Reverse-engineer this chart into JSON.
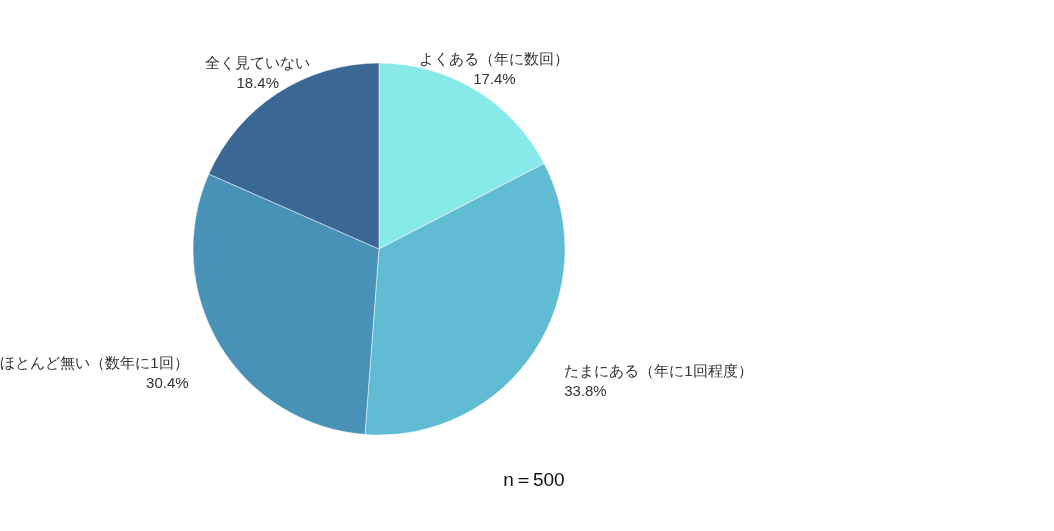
{
  "chart_data": {
    "type": "pie",
    "categories": [
      "よくある（年に数回）",
      "たまにある（年に1回程度）",
      "ほとんど無い（数年に1回）",
      "全く見ていない"
    ],
    "values": [
      17.4,
      33.8,
      30.4,
      18.4
    ],
    "value_labels": [
      "17.4%",
      "33.8%",
      "30.4%",
      "18.4%"
    ],
    "colors": [
      "#88e9e9",
      "#5fbcd3",
      "#4891b7",
      "#3b6795"
    ],
    "annotations": [
      "n＝500"
    ],
    "legend": false
  }
}
